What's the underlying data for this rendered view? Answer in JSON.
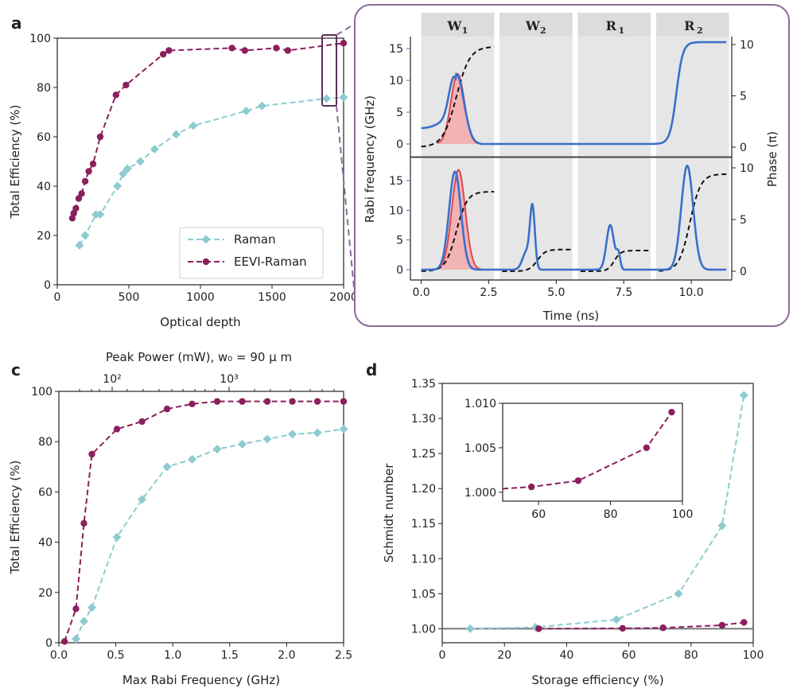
{
  "colors": {
    "raman": "#8ecbd0",
    "eevi": "#8c1f5e",
    "rabi": "#3a6fcc",
    "red": "#e0474c",
    "black": "#111111",
    "shade": "#e6e6e6",
    "frame": "#8c6a99",
    "axis": "#222222"
  },
  "legend": {
    "raman": "Raman",
    "eevi": "EEVI-Raman"
  },
  "chart_data": [
    {
      "panel": "a",
      "type": "line",
      "xlabel": "Optical depth",
      "ylabel": "Total Efficiency (%)",
      "xlim": [
        0,
        2000
      ],
      "ylim": [
        0,
        100
      ],
      "xticks": [
        0,
        500,
        1000,
        1500,
        2000
      ],
      "yticks": [
        0,
        20,
        40,
        60,
        80,
        100
      ],
      "series": [
        {
          "name": "Raman",
          "marker": "diamond",
          "x": [
            155,
            195,
            270,
            300,
            420,
            460,
            490,
            580,
            680,
            830,
            950,
            1320,
            1430,
            1880,
            2000
          ],
          "y": [
            16,
            20,
            28.5,
            28.5,
            40,
            45,
            47,
            50,
            55,
            61,
            64.5,
            70.5,
            72.5,
            75.5,
            76
          ]
        },
        {
          "name": "EEVI-Raman",
          "marker": "circle",
          "x": [
            105,
            115,
            130,
            150,
            170,
            195,
            220,
            250,
            300,
            410,
            480,
            740,
            780,
            1220,
            1310,
            1530,
            1610,
            2000
          ],
          "y": [
            27,
            29,
            31,
            35,
            37,
            42,
            46,
            49,
            60,
            77,
            81,
            93.5,
            95,
            96,
            95,
            96,
            95,
            98
          ]
        }
      ]
    },
    {
      "panel": "b",
      "type": "line",
      "xlabel": "Time (ns)",
      "ylabel_left": "Rabi frequency (GHz)",
      "ylabel_right": "Phase (π)",
      "xlim": [
        -0.4,
        11.5
      ],
      "xticks": [
        0.0,
        2.5,
        5.0,
        7.5,
        10.0
      ],
      "xtick_labels": [
        "0.0",
        "2.5",
        "5.0",
        "7.5",
        "10.0"
      ],
      "yticks_left": [
        0,
        5,
        10,
        15
      ],
      "yticks_right": [
        0,
        5,
        10
      ],
      "windows": [
        {
          "label": "W",
          "sub": "1",
          "start": 0.0,
          "end": 2.7
        },
        {
          "label": "W",
          "sub": "2",
          "start": 2.9,
          "end": 5.6
        },
        {
          "label": "R",
          "sub": "1",
          "start": 5.8,
          "end": 8.5
        },
        {
          "label": "R",
          "sub": "2",
          "start": 8.7,
          "end": 11.4
        }
      ],
      "subplots": [
        {
          "name": "top",
          "rabi_peaks": [
            1.3,
            9.5
          ],
          "pulse_center": 1.3,
          "phase_final": 9.8
        },
        {
          "name": "bottom",
          "rabi_peaks": [
            1.3,
            4.1,
            7.0,
            9.9
          ],
          "pulse_center": 1.4,
          "phase_final": 9.5
        }
      ]
    },
    {
      "panel": "c",
      "type": "line",
      "xlabel": "Max Rabi Frequency (GHz)",
      "ylabel": "Total Efficiency (%)",
      "top_xlabel": "Peak Power (mW), w₀ = 90 μ m",
      "top_xticks": [
        "10²",
        "10³"
      ],
      "xlim": [
        0,
        2.5
      ],
      "ylim": [
        0,
        100
      ],
      "xticks": [
        0.0,
        0.5,
        1.0,
        1.5,
        2.0,
        2.5
      ],
      "xtick_labels": [
        "0.0",
        "0.5",
        "1.0",
        "1.5",
        "2.0",
        "2.5"
      ],
      "yticks": [
        0,
        20,
        40,
        60,
        80,
        100
      ],
      "series": [
        {
          "name": "Raman",
          "marker": "diamond",
          "x": [
            0.15,
            0.22,
            0.29,
            0.51,
            0.73,
            0.95,
            1.17,
            1.39,
            1.61,
            1.83,
            2.05,
            2.27,
            2.5
          ],
          "y": [
            1.5,
            8.5,
            14,
            42,
            57,
            70,
            73,
            77,
            79,
            81,
            83,
            83.5,
            85
          ]
        },
        {
          "name": "EEVI-Raman",
          "marker": "circle",
          "x": [
            0.05,
            0.15,
            0.22,
            0.29,
            0.51,
            0.73,
            0.95,
            1.17,
            1.39,
            1.61,
            1.83,
            2.05,
            2.27,
            2.5
          ],
          "y": [
            0.5,
            13.5,
            47.5,
            75,
            85,
            88,
            93,
            95,
            96,
            96,
            96,
            96,
            96,
            96
          ]
        }
      ]
    },
    {
      "panel": "d",
      "type": "line",
      "xlabel": "Storage efficiency (%)",
      "ylabel": "Schmidt number",
      "xlim": [
        0,
        100
      ],
      "ylim": [
        0.98,
        1.35
      ],
      "xticks": [
        0,
        20,
        40,
        60,
        80,
        100
      ],
      "yticks": [
        1.0,
        1.05,
        1.1,
        1.15,
        1.2,
        1.25,
        1.3,
        1.35
      ],
      "ytick_labels": [
        "1.00",
        "1.05",
        "1.10",
        "1.15",
        "1.20",
        "1.25",
        "1.30",
        "1.35"
      ],
      "series": [
        {
          "name": "Raman",
          "marker": "diamond",
          "x": [
            9,
            30,
            56,
            76,
            90,
            97
          ],
          "y": [
            1.0,
            1.002,
            1.013,
            1.05,
            1.147,
            1.333
          ]
        },
        {
          "name": "EEVI-Raman",
          "marker": "circle",
          "x": [
            31,
            58,
            71,
            90,
            97
          ],
          "y": [
            1.0,
            1.0005,
            1.0013,
            1.005,
            1.009
          ]
        }
      ],
      "inset": {
        "xlim": [
          50,
          100
        ],
        "ylim": [
          0.999,
          1.01
        ],
        "xticks": [
          60,
          80,
          100
        ],
        "yticks": [
          1.0,
          1.005,
          1.01
        ],
        "ytick_labels": [
          "1.000",
          "1.005",
          "1.010"
        ],
        "x": [
          50,
          58,
          71,
          90,
          97
        ],
        "y": [
          1.0004,
          1.0006,
          1.0013,
          1.005,
          1.009
        ]
      }
    }
  ],
  "labels": {
    "a": "a",
    "b": "b",
    "c": "c",
    "d": "d"
  }
}
